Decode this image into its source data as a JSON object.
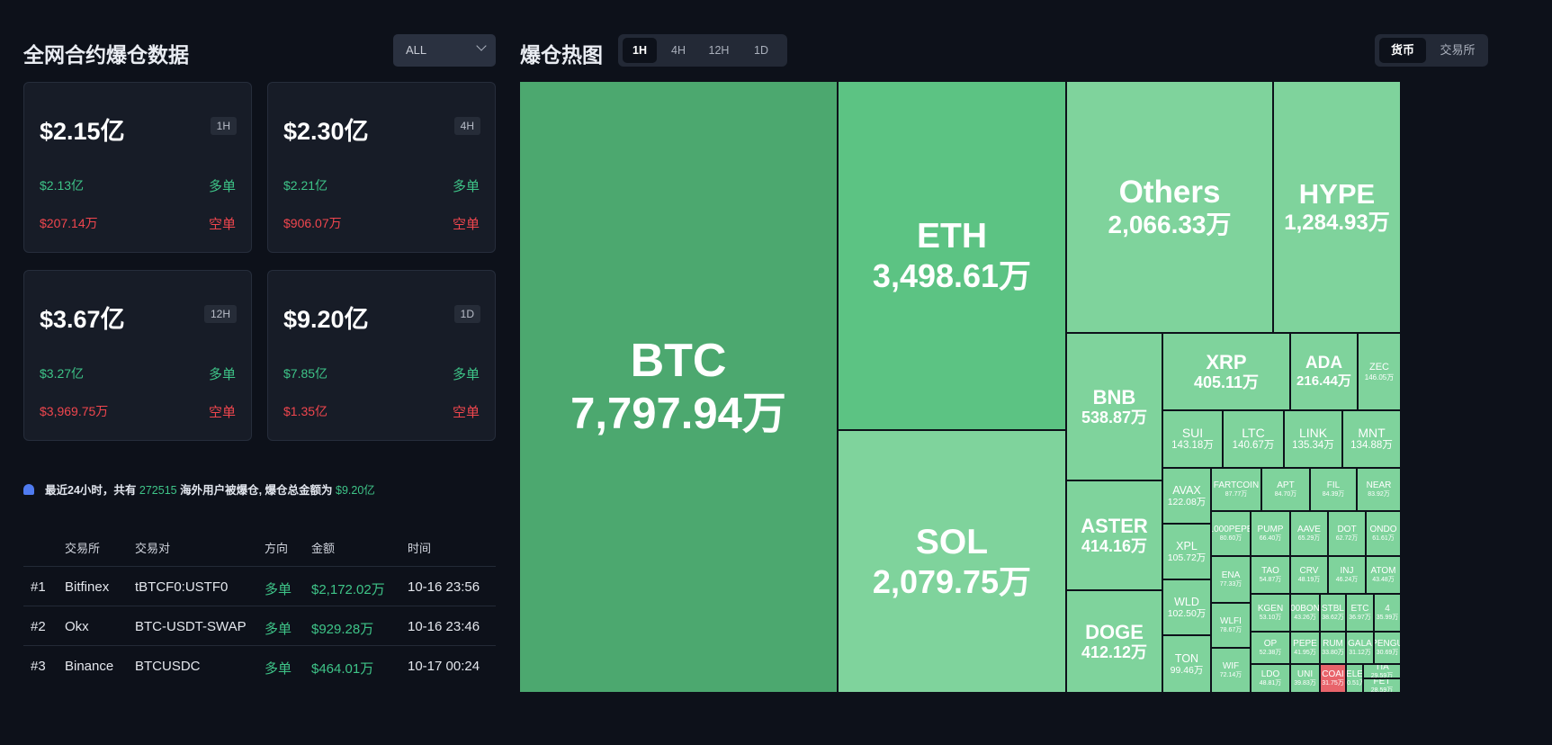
{
  "left": {
    "title": "全网合约爆仓数据",
    "exchange_filter": "ALL",
    "cards": [
      {
        "total": "$2.15亿",
        "period": "1H",
        "long_value": "$2.13亿",
        "long_label": "多单",
        "short_value": "$207.14万",
        "short_label": "空单"
      },
      {
        "total": "$2.30亿",
        "period": "4H",
        "long_value": "$2.21亿",
        "long_label": "多单",
        "short_value": "$906.07万",
        "short_label": "空单"
      },
      {
        "total": "$3.67亿",
        "period": "12H",
        "long_value": "$3.27亿",
        "long_label": "多单",
        "short_value": "$3,969.75万",
        "short_label": "空单"
      },
      {
        "total": "$9.20亿",
        "period": "1D",
        "long_value": "$7.85亿",
        "long_label": "多单",
        "short_value": "$1.35亿",
        "short_label": "空单"
      }
    ],
    "notice": {
      "prefix": "最近24小时，共有",
      "users": "272515",
      "middle": "海外用户被爆仓, 爆仓总金额为",
      "total": "$9.20亿"
    },
    "table": {
      "headers": [
        "交易所",
        "交易对",
        "方向",
        "金额",
        "时间"
      ],
      "rows": [
        {
          "rank": "#1",
          "exchange": "Bitfinex",
          "pair": "tBTCF0:USTF0",
          "side": "多单",
          "amount": "$2,172.02万",
          "time": "10-16 23:56"
        },
        {
          "rank": "#2",
          "exchange": "Okx",
          "pair": "BTC-USDT-SWAP",
          "side": "多单",
          "amount": "$929.28万",
          "time": "10-16 23:46"
        },
        {
          "rank": "#3",
          "exchange": "Binance",
          "pair": "BTCUSDC",
          "side": "多单",
          "amount": "$464.01万",
          "time": "10-17 00:24"
        }
      ]
    }
  },
  "heatmap": {
    "title": "爆仓热图",
    "tabs": [
      "1H",
      "4H",
      "12H",
      "1D"
    ],
    "active_tab": "1H",
    "toggle": [
      "货币",
      "交易所"
    ],
    "active_toggle": "货币",
    "colors": {
      "dark_green": "#4ca86f",
      "green": "#5cc383",
      "light_green": "#7fd39c",
      "red": "#e8646b"
    },
    "cells": [
      {
        "sym": "BTC",
        "val": "7,797.94万"
      },
      {
        "sym": "ETH",
        "val": "3,498.61万"
      },
      {
        "sym": "SOL",
        "val": "2,079.75万"
      },
      {
        "sym": "Others",
        "val": "2,066.33万"
      },
      {
        "sym": "HYPE",
        "val": "1,284.93万"
      },
      {
        "sym": "BNB",
        "val": "538.87万"
      },
      {
        "sym": "ASTER",
        "val": "414.16万"
      },
      {
        "sym": "DOGE",
        "val": "412.12万"
      },
      {
        "sym": "XRP",
        "val": "405.11万"
      },
      {
        "sym": "ADA",
        "val": "216.44万"
      },
      {
        "sym": "ZEC",
        "val": "146.05万"
      },
      {
        "sym": "SUI",
        "val": "143.18万"
      },
      {
        "sym": "LTC",
        "val": "140.67万"
      },
      {
        "sym": "LINK",
        "val": "135.34万"
      },
      {
        "sym": "MNT",
        "val": "134.88万"
      },
      {
        "sym": "AVAX",
        "val": "122.08万"
      },
      {
        "sym": "XPL",
        "val": "105.72万"
      },
      {
        "sym": "WLD",
        "val": "102.50万"
      },
      {
        "sym": "TON",
        "val": "99.46万"
      },
      {
        "sym": "FARTCOIN",
        "val": "87.77万"
      },
      {
        "sym": "APT",
        "val": "84.70万"
      },
      {
        "sym": "FIL",
        "val": "84.39万"
      },
      {
        "sym": "NEAR",
        "val": "83.92万"
      },
      {
        "sym": "1000PEPE",
        "val": "80.60万"
      },
      {
        "sym": "PUMP",
        "val": "66.40万"
      },
      {
        "sym": "AAVE",
        "val": "65.29万"
      },
      {
        "sym": "DOT",
        "val": "62.72万"
      },
      {
        "sym": "ONDO",
        "val": "61.61万"
      },
      {
        "sym": "ENA",
        "val": "77.33万"
      },
      {
        "sym": "TAO",
        "val": "54.87万"
      },
      {
        "sym": "CRV",
        "val": "48.19万"
      },
      {
        "sym": "INJ",
        "val": "46.24万"
      },
      {
        "sym": "ATOM",
        "val": "43.48万"
      },
      {
        "sym": "WLFI",
        "val": "78.67万"
      },
      {
        "sym": "KGEN",
        "val": "53.10万"
      },
      {
        "sym": "00BON",
        "val": "43.26万"
      },
      {
        "sym": "STBL",
        "val": "38.62万"
      },
      {
        "sym": "ETC",
        "val": "36.97万"
      },
      {
        "sym": "4",
        "val": "35.99万"
      },
      {
        "sym": "OP",
        "val": "52.38万"
      },
      {
        "sym": "PEPE",
        "val": "41.95万"
      },
      {
        "sym": "RUM",
        "val": "33.80万"
      },
      {
        "sym": "GALA",
        "val": "31.12万"
      },
      {
        "sym": "PENGU",
        "val": "30.69万"
      },
      {
        "sym": "WIF",
        "val": "72.14万"
      },
      {
        "sym": "LDO",
        "val": "48.81万"
      },
      {
        "sym": "UNI",
        "val": "39.83万"
      },
      {
        "sym": "COAI",
        "val": "31.75万"
      },
      {
        "sym": "ELE",
        "val": "30.51万"
      },
      {
        "sym": "TIA",
        "val": "29.59万"
      },
      {
        "sym": "FET",
        "val": "28.59万"
      }
    ]
  }
}
